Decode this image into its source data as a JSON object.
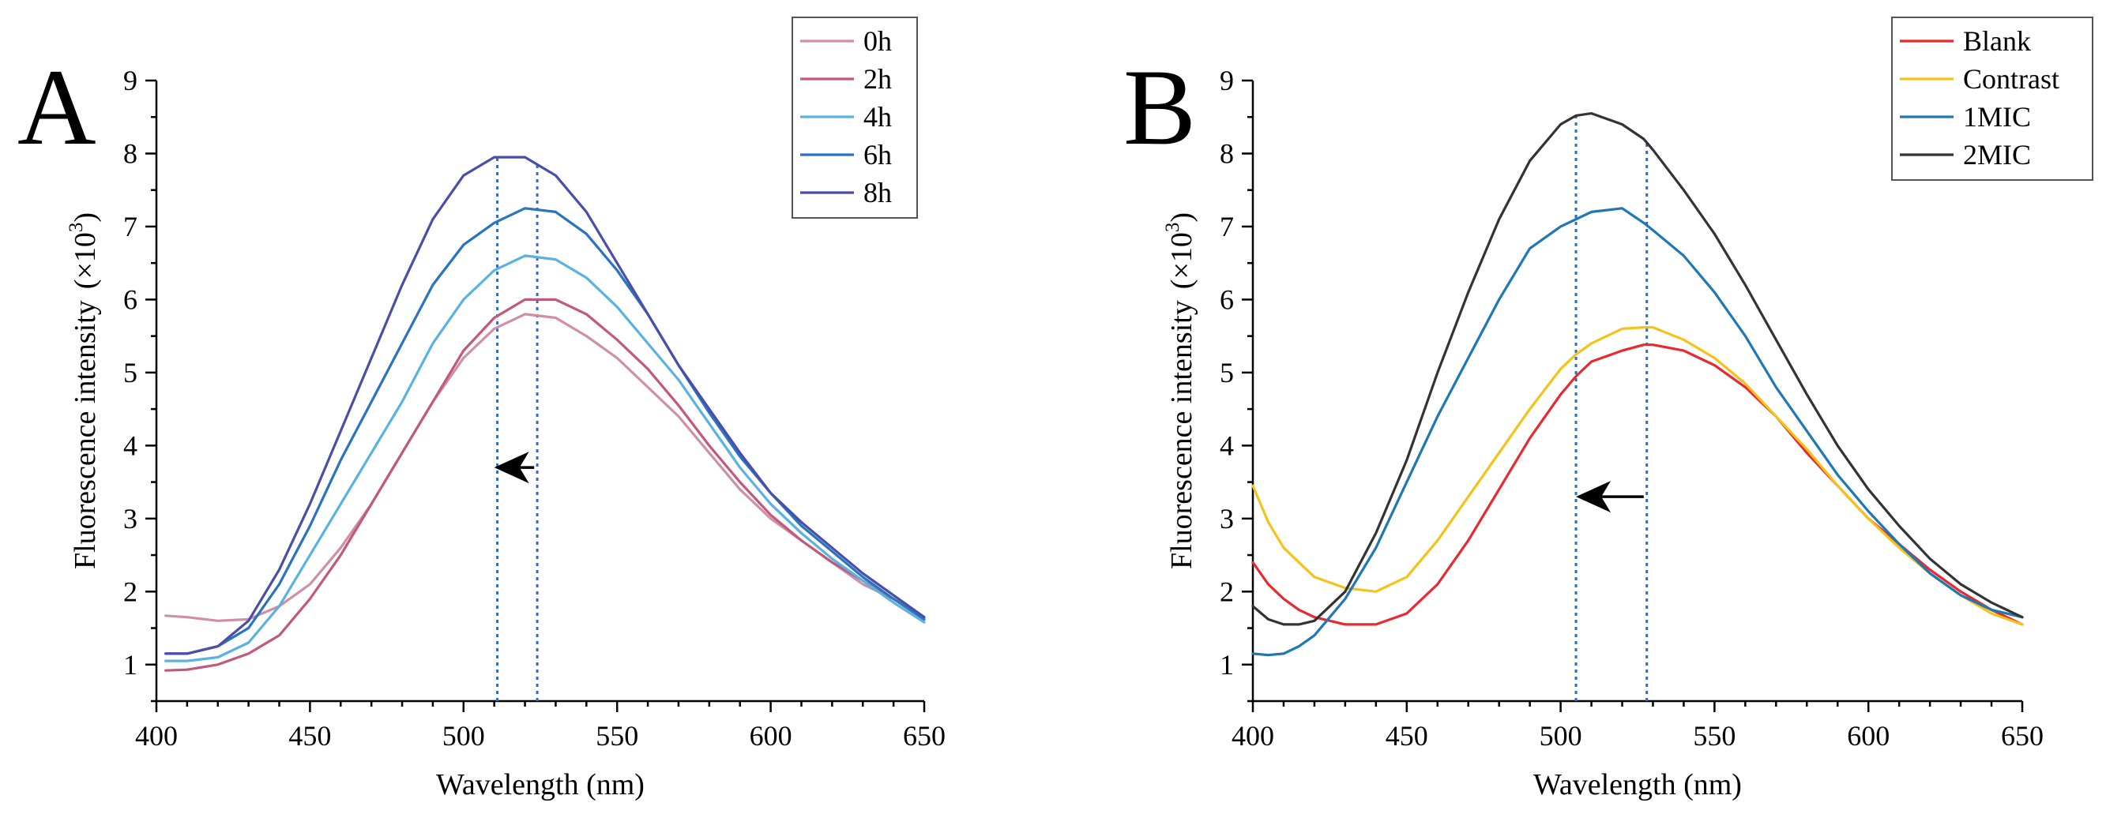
{
  "chart_data": [
    {
      "type": "line",
      "panel_label": "A",
      "xlabel": "Wavelength (nm)",
      "ylabel": {
        "main": "Fluorescence intensity",
        "open": "(×10",
        "exp": "3",
        "close": ")"
      },
      "xlim": [
        400,
        650
      ],
      "ylim": [
        0.5,
        9
      ],
      "xticks": [
        400,
        450,
        500,
        550,
        600,
        650
      ],
      "yticks": [
        1,
        2,
        3,
        4,
        5,
        6,
        7,
        8,
        9
      ],
      "legend_position": "top-right",
      "x": [
        403,
        410,
        420,
        430,
        440,
        450,
        460,
        470,
        480,
        490,
        500,
        510,
        520,
        530,
        540,
        550,
        560,
        570,
        580,
        590,
        600,
        610,
        620,
        630,
        640,
        650
      ],
      "series": [
        {
          "name": "0h",
          "color": "#d08fa6",
          "values": [
            1.67,
            1.65,
            1.6,
            1.62,
            1.8,
            2.1,
            2.6,
            3.2,
            3.9,
            4.6,
            5.2,
            5.6,
            5.8,
            5.75,
            5.5,
            5.2,
            4.8,
            4.4,
            3.9,
            3.4,
            3.0,
            2.7,
            2.4,
            2.1,
            1.9,
            1.65
          ]
        },
        {
          "name": "2h",
          "color": "#c0597a",
          "values": [
            0.92,
            0.93,
            1.0,
            1.15,
            1.4,
            1.9,
            2.5,
            3.2,
            3.9,
            4.6,
            5.3,
            5.75,
            6.0,
            6.0,
            5.8,
            5.45,
            5.05,
            4.55,
            4.0,
            3.5,
            3.05,
            2.7,
            2.4,
            2.15,
            1.9,
            1.62
          ]
        },
        {
          "name": "4h",
          "color": "#5ab2e0",
          "values": [
            1.05,
            1.05,
            1.1,
            1.3,
            1.8,
            2.5,
            3.2,
            3.9,
            4.6,
            5.4,
            6.0,
            6.4,
            6.6,
            6.55,
            6.3,
            5.9,
            5.4,
            4.9,
            4.3,
            3.7,
            3.2,
            2.8,
            2.45,
            2.15,
            1.85,
            1.58
          ]
        },
        {
          "name": "6h",
          "color": "#2a73c0",
          "values": [
            1.15,
            1.15,
            1.25,
            1.5,
            2.1,
            2.9,
            3.8,
            4.6,
            5.4,
            6.2,
            6.75,
            7.05,
            7.25,
            7.2,
            6.9,
            6.4,
            5.8,
            5.1,
            4.45,
            3.85,
            3.35,
            2.9,
            2.55,
            2.2,
            1.9,
            1.62
          ]
        },
        {
          "name": "8h",
          "color": "#4a4fa6",
          "values": [
            1.15,
            1.15,
            1.25,
            1.6,
            2.3,
            3.2,
            4.2,
            5.2,
            6.2,
            7.1,
            7.7,
            7.95,
            7.95,
            7.7,
            7.2,
            6.5,
            5.8,
            5.1,
            4.5,
            3.9,
            3.35,
            2.95,
            2.6,
            2.25,
            1.95,
            1.65
          ]
        }
      ],
      "annotations": {
        "peak_lines_x": [
          511,
          524
        ],
        "peak_line_color": "#2a6ec8",
        "arrow": {
          "from_x": 523,
          "to_x": 510,
          "y": 3.7,
          "direction": "left"
        }
      }
    },
    {
      "type": "line",
      "panel_label": "B",
      "xlabel": "Wavelength (nm)",
      "ylabel": {
        "main": "Fluorescence intensity",
        "open": "(×10",
        "exp": "3",
        "close": ")"
      },
      "xlim": [
        400,
        650
      ],
      "ylim": [
        0.5,
        9
      ],
      "xticks": [
        400,
        450,
        500,
        550,
        600,
        650
      ],
      "yticks": [
        1,
        2,
        3,
        4,
        5,
        6,
        7,
        8,
        9
      ],
      "legend_position": "top-right",
      "x": [
        400,
        405,
        410,
        415,
        420,
        430,
        440,
        450,
        460,
        470,
        480,
        490,
        500,
        505,
        510,
        520,
        527,
        530,
        540,
        550,
        560,
        570,
        580,
        590,
        600,
        610,
        620,
        630,
        640,
        650
      ],
      "series": [
        {
          "name": "Blank",
          "color": "#e8292f",
          "values": [
            2.4,
            2.1,
            1.9,
            1.75,
            1.65,
            1.55,
            1.55,
            1.7,
            2.1,
            2.7,
            3.4,
            4.1,
            4.7,
            4.95,
            5.15,
            5.3,
            5.38,
            5.38,
            5.3,
            5.1,
            4.8,
            4.4,
            3.9,
            3.45,
            3.0,
            2.65,
            2.3,
            2.0,
            1.75,
            1.55
          ]
        },
        {
          "name": "Contrast",
          "color": "#f5c21b",
          "values": [
            3.45,
            2.95,
            2.6,
            2.4,
            2.2,
            2.05,
            2.0,
            2.2,
            2.7,
            3.3,
            3.9,
            4.5,
            5.05,
            5.25,
            5.4,
            5.6,
            5.62,
            5.62,
            5.45,
            5.2,
            4.85,
            4.4,
            3.95,
            3.45,
            3.0,
            2.6,
            2.25,
            1.95,
            1.7,
            1.55
          ]
        },
        {
          "name": "1MIC",
          "color": "#1f77b4",
          "values": [
            1.15,
            1.13,
            1.15,
            1.25,
            1.4,
            1.9,
            2.6,
            3.5,
            4.4,
            5.2,
            6.0,
            6.7,
            7.0,
            7.1,
            7.2,
            7.25,
            7.05,
            6.95,
            6.6,
            6.1,
            5.5,
            4.8,
            4.2,
            3.6,
            3.1,
            2.65,
            2.25,
            1.95,
            1.75,
            1.65
          ]
        },
        {
          "name": "2MIC",
          "color": "#333333",
          "values": [
            1.8,
            1.62,
            1.55,
            1.55,
            1.6,
            2.0,
            2.8,
            3.8,
            5.0,
            6.1,
            7.1,
            7.9,
            8.4,
            8.52,
            8.55,
            8.4,
            8.2,
            8.05,
            7.5,
            6.9,
            6.2,
            5.45,
            4.7,
            4.0,
            3.4,
            2.9,
            2.45,
            2.1,
            1.85,
            1.65
          ]
        }
      ],
      "annotations": {
        "peak_lines_x": [
          505,
          528
        ],
        "peak_line_color": "#2a6ec8",
        "arrow": {
          "from_x": 527,
          "to_x": 505,
          "y": 3.3,
          "direction": "left"
        }
      }
    }
  ]
}
